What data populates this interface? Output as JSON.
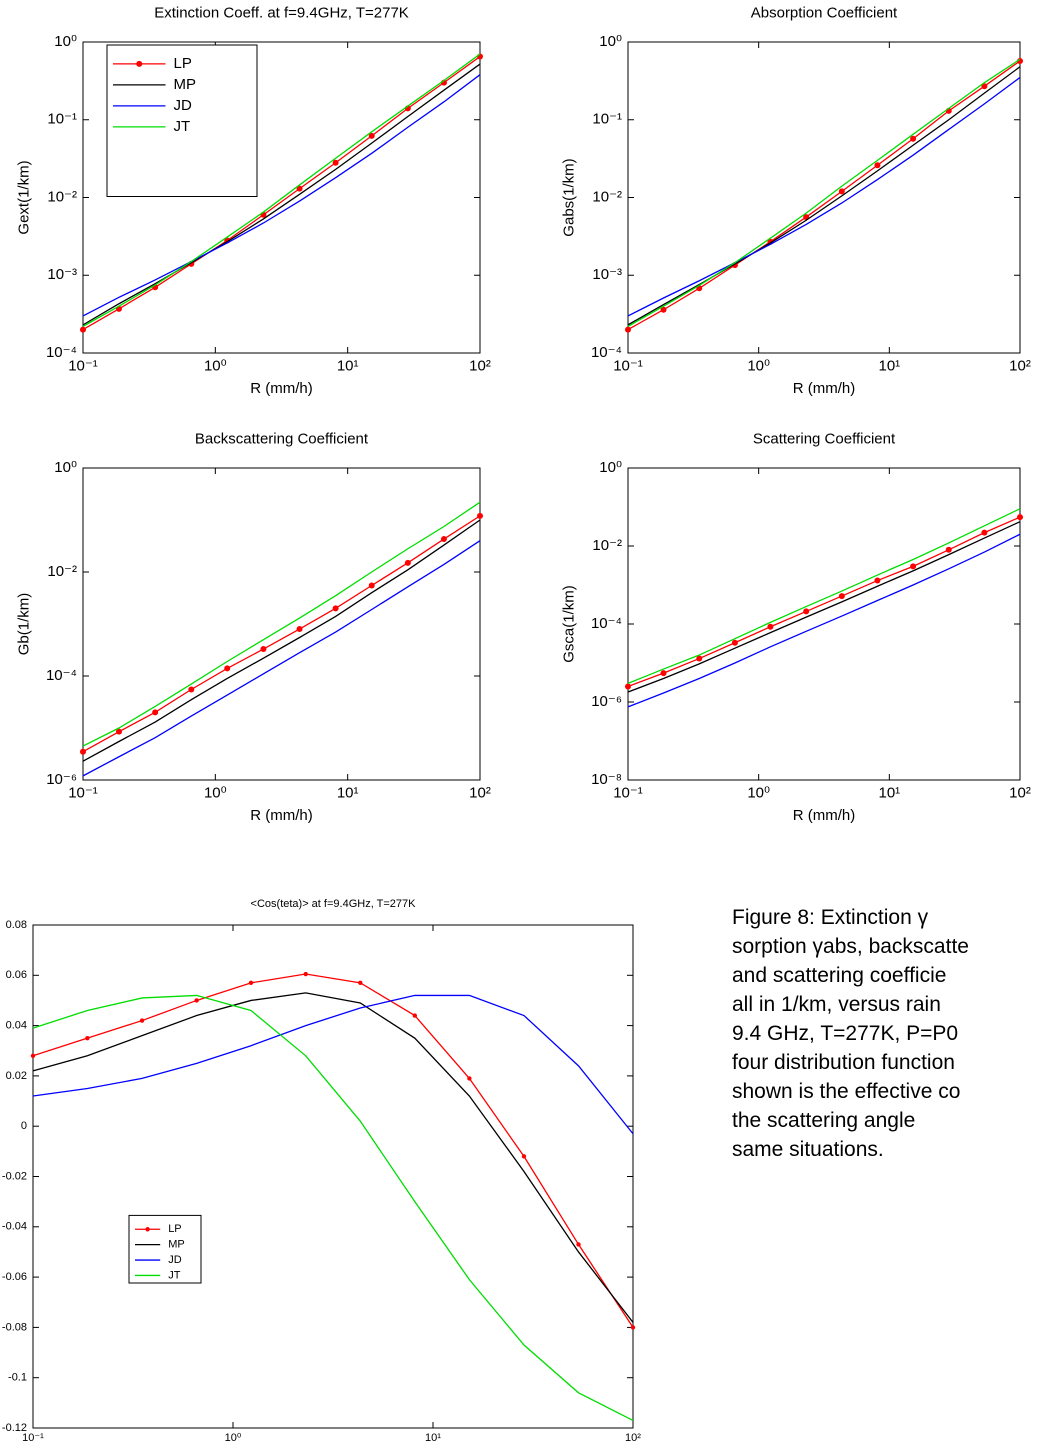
{
  "chart_data": [
    {
      "type": "line",
      "title": "Extinction Coeff. at f=9.4GHz, T=277K",
      "xlabel": "R (mm/h)",
      "ylabel": "Gext(1/km)",
      "xscale": "log",
      "yscale": "log",
      "xlim": [
        0.1,
        100
      ],
      "ylim": [
        0.0001,
        1
      ],
      "xticks": [
        {
          "value": 0.1,
          "label": "10⁻¹"
        },
        {
          "value": 1,
          "label": "10⁰"
        },
        {
          "value": 10,
          "label": "10¹"
        },
        {
          "value": 100,
          "label": "10²"
        }
      ],
      "yticks": [
        {
          "value": 0.0001,
          "label": "10⁻⁴"
        },
        {
          "value": 0.001,
          "label": "10⁻³"
        },
        {
          "value": 0.01,
          "label": "10⁻²"
        },
        {
          "value": 0.1,
          "label": "10⁻¹"
        },
        {
          "value": 1,
          "label": "10⁰"
        }
      ],
      "legend": "upper left",
      "x": [
        0.1,
        0.187,
        0.351,
        0.658,
        1.23,
        2.31,
        4.33,
        8.11,
        15.2,
        28.5,
        53.4,
        100
      ],
      "series": [
        {
          "name": "LP",
          "color": "#ff0000",
          "marker": "o",
          "values": [
            0.0002,
            0.00037,
            0.0007,
            0.0014,
            0.0028,
            0.006,
            0.013,
            0.028,
            0.062,
            0.14,
            0.3,
            0.65
          ]
        },
        {
          "name": "MP",
          "color": "#000000",
          "values": [
            0.00023,
            0.00043,
            0.00078,
            0.00145,
            0.0027,
            0.0053,
            0.011,
            0.023,
            0.05,
            0.11,
            0.24,
            0.52
          ]
        },
        {
          "name": "JD",
          "color": "#0000ff",
          "values": [
            0.0003,
            0.00052,
            0.00087,
            0.0015,
            0.0026,
            0.0047,
            0.009,
            0.018,
            0.037,
            0.08,
            0.17,
            0.38
          ]
        },
        {
          "name": "JT",
          "color": "#00dd00",
          "values": [
            0.00022,
            0.0004,
            0.00075,
            0.0015,
            0.0031,
            0.0065,
            0.0145,
            0.032,
            0.07,
            0.15,
            0.32,
            0.7
          ]
        }
      ]
    },
    {
      "type": "line",
      "title": "Absorption Coefficient",
      "xlabel": "R (mm/h)",
      "ylabel": "Gabs(1/km)",
      "xscale": "log",
      "yscale": "log",
      "xlim": [
        0.1,
        100
      ],
      "ylim": [
        0.0001,
        1
      ],
      "xticks": [
        {
          "value": 0.1,
          "label": "10⁻¹"
        },
        {
          "value": 1,
          "label": "10⁰"
        },
        {
          "value": 10,
          "label": "10¹"
        },
        {
          "value": 100,
          "label": "10²"
        }
      ],
      "yticks": [
        {
          "value": 0.0001,
          "label": "10⁻⁴"
        },
        {
          "value": 0.001,
          "label": "10⁻³"
        },
        {
          "value": 0.01,
          "label": "10⁻²"
        },
        {
          "value": 0.1,
          "label": "10⁻¹"
        },
        {
          "value": 1,
          "label": "10⁰"
        }
      ],
      "x": [
        0.1,
        0.187,
        0.351,
        0.658,
        1.23,
        2.31,
        4.33,
        8.11,
        15.2,
        28.5,
        53.4,
        100
      ],
      "series": [
        {
          "name": "LP",
          "color": "#ff0000",
          "marker": "o",
          "values": [
            0.0002,
            0.00036,
            0.00068,
            0.00135,
            0.0027,
            0.0056,
            0.012,
            0.026,
            0.057,
            0.13,
            0.27,
            0.57
          ]
        },
        {
          "name": "MP",
          "color": "#000000",
          "values": [
            0.00023,
            0.00042,
            0.00076,
            0.0014,
            0.0026,
            0.0051,
            0.0105,
            0.022,
            0.047,
            0.1,
            0.22,
            0.48
          ]
        },
        {
          "name": "JD",
          "color": "#0000ff",
          "values": [
            0.0003,
            0.00051,
            0.00085,
            0.00145,
            0.0025,
            0.0045,
            0.0085,
            0.017,
            0.035,
            0.075,
            0.16,
            0.35
          ]
        },
        {
          "name": "JT",
          "color": "#00dd00",
          "values": [
            0.00022,
            0.0004,
            0.00074,
            0.00145,
            0.003,
            0.0063,
            0.014,
            0.03,
            0.065,
            0.14,
            0.3,
            0.6
          ]
        }
      ]
    },
    {
      "type": "line",
      "title": "Backscattering Coefficient",
      "xlabel": "R (mm/h)",
      "ylabel": "Gb(1/km)",
      "xscale": "log",
      "yscale": "log",
      "xlim": [
        0.1,
        100
      ],
      "ylim": [
        1e-06,
        1
      ],
      "xticks": [
        {
          "value": 0.1,
          "label": "10⁻¹"
        },
        {
          "value": 1,
          "label": "10⁰"
        },
        {
          "value": 10,
          "label": "10¹"
        },
        {
          "value": 100,
          "label": "10²"
        }
      ],
      "yticks": [
        {
          "value": 1e-06,
          "label": "10⁻⁶"
        },
        {
          "value": 0.0001,
          "label": "10⁻⁴"
        },
        {
          "value": 0.01,
          "label": "10⁻²"
        },
        {
          "value": 1,
          "label": "10⁰"
        }
      ],
      "x": [
        0.1,
        0.187,
        0.351,
        0.658,
        1.23,
        2.31,
        4.33,
        8.11,
        15.2,
        28.5,
        53.4,
        100
      ],
      "series": [
        {
          "name": "LP",
          "color": "#ff0000",
          "marker": "o",
          "values": [
            3.5e-06,
            8.5e-06,
            2e-05,
            5.5e-05,
            0.00014,
            0.00033,
            0.0008,
            0.002,
            0.0055,
            0.015,
            0.043,
            0.12
          ]
        },
        {
          "name": "MP",
          "color": "#000000",
          "values": [
            2.3e-06,
            5.5e-06,
            1.3e-05,
            3.5e-05,
            9e-05,
            0.00022,
            0.00055,
            0.0014,
            0.004,
            0.011,
            0.033,
            0.1
          ]
        },
        {
          "name": "JD",
          "color": "#0000ff",
          "values": [
            1.2e-06,
            2.8e-06,
            6.5e-06,
            1.7e-05,
            4.3e-05,
            0.00011,
            0.00028,
            0.0007,
            0.0019,
            0.0052,
            0.014,
            0.04
          ]
        },
        {
          "name": "JT",
          "color": "#00dd00",
          "values": [
            4.5e-06,
            1e-05,
            2.6e-05,
            7e-05,
            0.00019,
            0.0005,
            0.0013,
            0.0035,
            0.01,
            0.028,
            0.075,
            0.22
          ]
        }
      ]
    },
    {
      "type": "line",
      "title": "Scattering Coefficient",
      "xlabel": "R (mm/h)",
      "ylabel": "Gsca(1/km)",
      "xscale": "log",
      "yscale": "log",
      "xlim": [
        0.1,
        100
      ],
      "ylim": [
        1e-08,
        1
      ],
      "xticks": [
        {
          "value": 0.1,
          "label": "10⁻¹"
        },
        {
          "value": 1,
          "label": "10⁰"
        },
        {
          "value": 10,
          "label": "10¹"
        },
        {
          "value": 100,
          "label": "10²"
        }
      ],
      "yticks": [
        {
          "value": 1e-08,
          "label": "10⁻⁸"
        },
        {
          "value": 1e-06,
          "label": "10⁻⁶"
        },
        {
          "value": 0.0001,
          "label": "10⁻⁴"
        },
        {
          "value": 0.01,
          "label": "10⁻²"
        },
        {
          "value": 1,
          "label": "10⁰"
        }
      ],
      "x": [
        0.1,
        0.187,
        0.351,
        0.658,
        1.23,
        2.31,
        4.33,
        8.11,
        15.2,
        28.5,
        53.4,
        100
      ],
      "series": [
        {
          "name": "LP",
          "color": "#ff0000",
          "marker": "o",
          "values": [
            2.5e-06,
            5.5e-06,
            1.3e-05,
            3.3e-05,
            8.5e-05,
            0.00021,
            0.00052,
            0.0013,
            0.003,
            0.008,
            0.022,
            0.055
          ]
        },
        {
          "name": "MP",
          "color": "#000000",
          "values": [
            1.8e-06,
            4e-06,
            9.5e-06,
            2.4e-05,
            6e-05,
            0.00015,
            0.00037,
            0.00093,
            0.0023,
            0.006,
            0.016,
            0.042
          ]
        },
        {
          "name": "JD",
          "color": "#0000ff",
          "values": [
            7.5e-07,
            1.7e-06,
            4e-06,
            1e-05,
            2.6e-05,
            6.5e-05,
            0.00016,
            0.0004,
            0.001,
            0.0026,
            0.007,
            0.02
          ]
        },
        {
          "name": "JT",
          "color": "#00dd00",
          "values": [
            3e-06,
            7e-06,
            1.6e-05,
            4.2e-05,
            0.00011,
            0.00028,
            0.0007,
            0.0018,
            0.0045,
            0.012,
            0.033,
            0.09
          ]
        }
      ]
    },
    {
      "type": "line",
      "title": "<Cos(teta)> at f=9.4GHz, T=277K",
      "xlabel": "R (mm/h)",
      "xscale": "log",
      "yscale": "linear",
      "xlim": [
        0.1,
        100
      ],
      "ylim": [
        -0.12,
        0.08
      ],
      "xticks": [
        {
          "value": 0.1,
          "label": "10⁻¹"
        },
        {
          "value": 1,
          "label": "10⁰"
        },
        {
          "value": 10,
          "label": "10¹"
        },
        {
          "value": 100,
          "label": "10²"
        }
      ],
      "yticks": [
        -0.12,
        -0.1,
        -0.08,
        -0.06,
        -0.04,
        -0.02,
        0,
        0.02,
        0.04,
        0.06,
        0.08
      ],
      "legend": "lower left",
      "x": [
        0.1,
        0.187,
        0.351,
        0.658,
        1.23,
        2.31,
        4.33,
        8.11,
        15.2,
        28.5,
        53.4,
        100
      ],
      "series": [
        {
          "name": "LP",
          "color": "#ff0000",
          "marker": "o",
          "values": [
            0.028,
            0.035,
            0.042,
            0.05,
            0.057,
            0.0605,
            0.057,
            0.044,
            0.019,
            -0.012,
            -0.047,
            -0.08
          ]
        },
        {
          "name": "MP",
          "color": "#000000",
          "values": [
            0.022,
            0.028,
            0.036,
            0.044,
            0.05,
            0.053,
            0.049,
            0.035,
            0.012,
            -0.018,
            -0.05,
            -0.078
          ]
        },
        {
          "name": "JD",
          "color": "#0000ff",
          "values": [
            0.012,
            0.015,
            0.019,
            0.025,
            0.032,
            0.04,
            0.047,
            0.052,
            0.052,
            0.044,
            0.024,
            -0.003
          ]
        },
        {
          "name": "JT",
          "color": "#00dd00",
          "values": [
            0.039,
            0.046,
            0.051,
            0.052,
            0.046,
            0.028,
            0.002,
            -0.03,
            -0.061,
            -0.087,
            -0.106,
            -0.117
          ]
        }
      ]
    }
  ],
  "caption": [
    "Figure 8: Extinction γ",
    "sorption γabs, backscatte",
    "and scattering coefficie",
    "all in 1/km, versus rain",
    "9.4 GHz, T=277K, P=P0",
    "four distribution function",
    "shown is the effective co",
    "the scattering angle",
    "same situations."
  ]
}
